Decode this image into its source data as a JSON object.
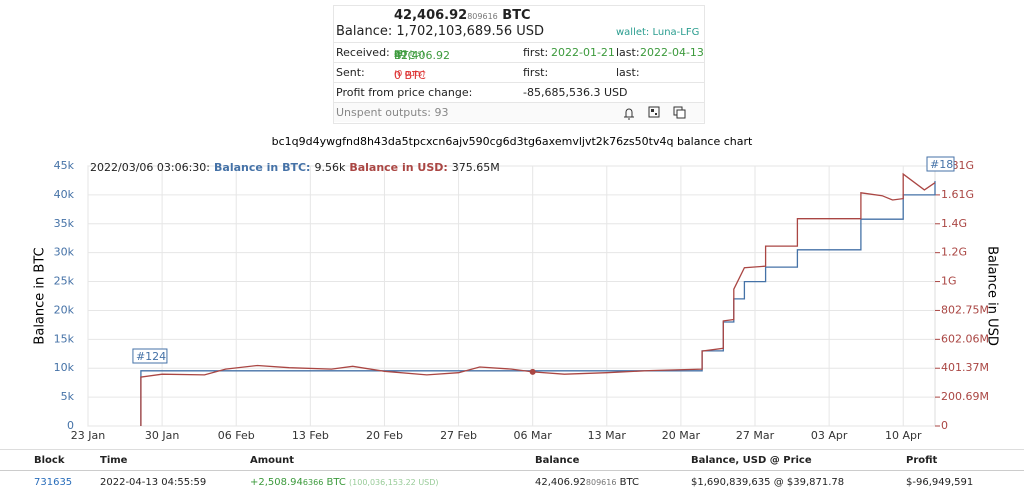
{
  "summary": {
    "btc": "42,406.92",
    "btc_small": "809616",
    "btc_unit": "BTC",
    "balance": "Balance: 1,702,103,689.56 USD",
    "wallet": "wallet: Luna-LFG",
    "received": {
      "label": "Received:",
      "btc": "42,406.92",
      "btc_small": "81",
      "unit": "BTC",
      "ins": "(93 ins)",
      "first_label": "first:",
      "first": "2022-01-21",
      "last_label": "last:",
      "last": "2022-04-13"
    },
    "sent": {
      "label": "Sent:",
      "btc": "0 BTC",
      "outs": "(0 outs)",
      "first_label": "first:",
      "last_label": "last:"
    },
    "profit": {
      "label": "Profit from price change:",
      "value": "-85,685,536.3 USD"
    },
    "unspent": "Unspent outputs: 93"
  },
  "chart_data": {
    "type": "line",
    "title": "bc1q9d4ywgfnd8h43da5tpcxcn6ajv590cg6d3tg6axemvljvt2k76zs50tv4q balance chart",
    "ylabel": "Balance in BTC",
    "y2label": "Balance in USD",
    "grid": true,
    "xlim": [
      "23 Jan",
      "13 Apr"
    ],
    "xticks": [
      "23 Jan",
      "30 Jan",
      "06 Feb",
      "13 Feb",
      "20 Feb",
      "27 Feb",
      "06 Mar",
      "13 Mar",
      "20 Mar",
      "27 Mar",
      "03 Apr",
      "10 Apr"
    ],
    "ylim": [
      0,
      45000
    ],
    "yticks": [
      0,
      {
        "value": 5000,
        "label": "5k"
      },
      {
        "value": 10000,
        "label": "10k"
      },
      {
        "value": 15000,
        "label": "15k"
      },
      {
        "value": 20000,
        "label": "20k"
      },
      {
        "value": 25000,
        "label": "25k"
      },
      {
        "value": 30000,
        "label": "30k"
      },
      {
        "value": 35000,
        "label": "35k"
      },
      {
        "value": 40000,
        "label": "40k"
      },
      {
        "value": 45000,
        "label": "45k"
      }
    ],
    "y2lim": [
      0,
      1806210000
    ],
    "y2ticks": [
      0,
      {
        "value": 200690000,
        "label": "200.69M"
      },
      {
        "value": 401370000,
        "label": "401.37M"
      },
      {
        "value": 602060000,
        "label": "602.06M"
      },
      {
        "value": 802750000,
        "label": "802.75M"
      },
      {
        "value": 1003450000,
        "label": "1G"
      },
      {
        "value": 1204140000,
        "label": "1.2G"
      },
      {
        "value": 1404830000,
        "label": "1.4G"
      },
      {
        "value": 1605520000,
        "label": "1.61G"
      },
      {
        "value": 1806210000,
        "label": "1.81G"
      }
    ],
    "series": [
      {
        "name": "Balance in BTC",
        "color": "#4572a7",
        "x": [
          "28 Jan",
          "28 Jan",
          "22 Mar",
          "22 Mar",
          "24 Mar",
          "24 Mar",
          "25 Mar",
          "25 Mar",
          "26 Mar",
          "26 Mar",
          "28 Mar",
          "28 Mar",
          "31 Mar",
          "31 Mar",
          "06 Apr",
          "06 Apr",
          "10 Apr",
          "10 Apr",
          "13 Apr",
          "13 Apr"
        ],
        "values": [
          0,
          9560,
          9560,
          13000,
          13000,
          18000,
          18000,
          22000,
          22000,
          25000,
          25000,
          27500,
          27500,
          30500,
          30500,
          35800,
          35800,
          40000,
          40000,
          42407
        ]
      },
      {
        "name": "Balance in USD",
        "color": "#aa4643",
        "axis": "y2",
        "x": [
          "28 Jan",
          "28 Jan",
          "30 Jan",
          "03 Feb",
          "05 Feb",
          "08 Feb",
          "11 Feb",
          "15 Feb",
          "17 Feb",
          "20 Feb",
          "24 Feb",
          "27 Feb",
          "01 Mar",
          "04 Mar",
          "06 Mar",
          "09 Mar",
          "13 Mar",
          "17 Mar",
          "22 Mar",
          "22 Mar",
          "24 Mar",
          "24 Mar",
          "25 Mar",
          "25 Mar",
          "26 Mar",
          "28 Mar",
          "28 Mar",
          "31 Mar",
          "31 Mar",
          "06 Apr",
          "06 Apr",
          "08 Apr",
          "09 Apr",
          "10 Apr",
          "10 Apr",
          "12 Apr",
          "13 Apr"
        ],
        "values": [
          0,
          340000000,
          360000000,
          355000000,
          395000000,
          420000000,
          405000000,
          395000000,
          415000000,
          380000000,
          355000000,
          370000000,
          410000000,
          395000000,
          375650000,
          360000000,
          370000000,
          385000000,
          395000000,
          520000000,
          540000000,
          730000000,
          740000000,
          950000000,
          1100000000,
          1110000000,
          1250000000,
          1250000000,
          1440000000,
          1440000000,
          1620000000,
          1600000000,
          1570000000,
          1580000000,
          1750000000,
          1640000000,
          1690000000
        ]
      }
    ],
    "tooltip": {
      "time": "2022/03/06 03:06:30:",
      "btc_label": "Balance in BTC:",
      "btc": "9.56k",
      "usd_label": "Balance in USD:",
      "usd": "375.65M"
    },
    "flags": [
      {
        "label": "#124",
        "x": "28 Jan"
      },
      {
        "label": "#18",
        "x": "13 Apr"
      }
    ]
  },
  "table": {
    "headers": [
      "Block",
      "Time",
      "Amount",
      "Balance",
      "Balance, USD @ Price",
      "Profit"
    ],
    "rows": [
      {
        "block": "731635",
        "time": "2022-04-13 04:55:59",
        "amount": {
          "main": "+2,508.94",
          "small": "6366",
          "unit": "BTC",
          "usd": "(100,036,153.22 USD)"
        },
        "balance": {
          "main": "42,406.92",
          "small": "809616",
          "unit": "BTC"
        },
        "usd_price": "$1,690,839,635 @ $39,871.78",
        "profit": "$-96,949,591"
      }
    ]
  }
}
